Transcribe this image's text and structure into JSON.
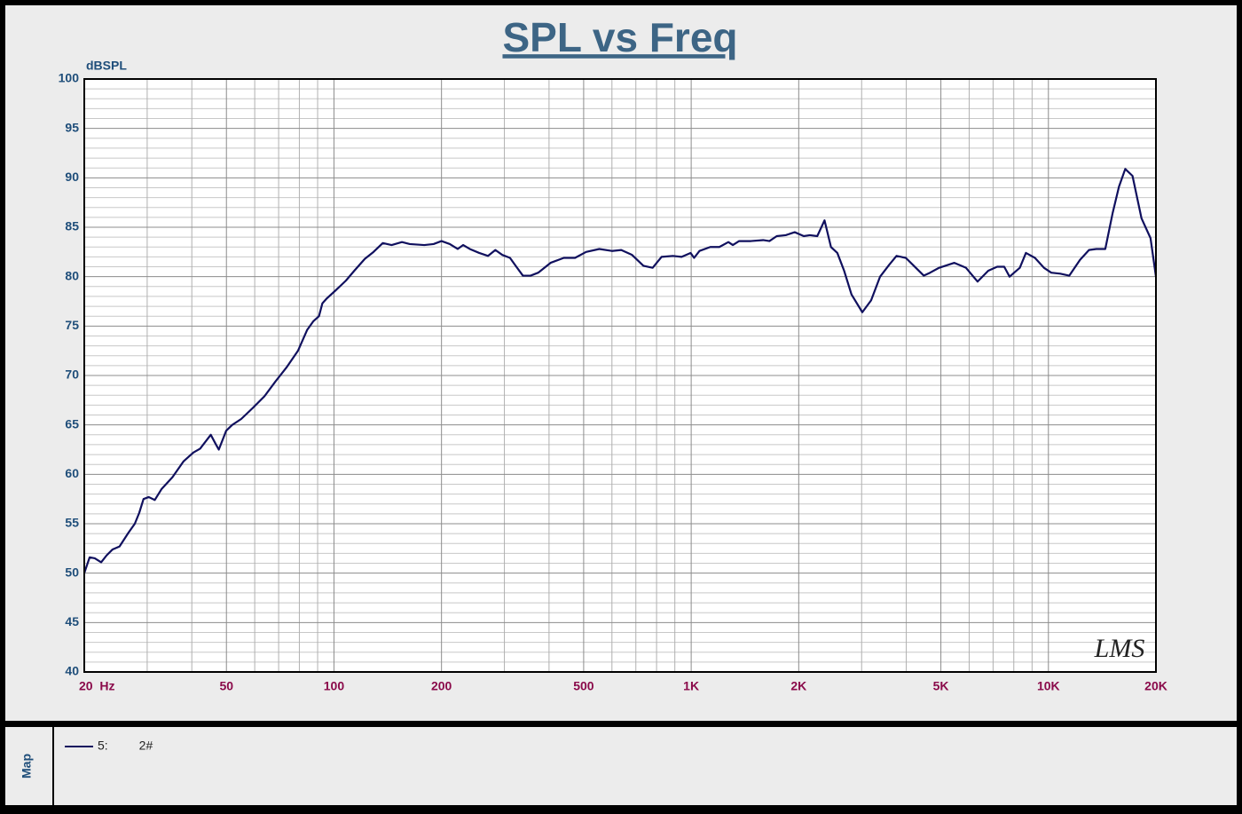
{
  "chart_data": {
    "type": "line",
    "title": "SPL vs Freq",
    "y_label": "dBSPL",
    "annotation": "LMS",
    "panel_label": "Map",
    "log_x": true,
    "grid": true,
    "xlim": [
      20,
      20000
    ],
    "ylim": [
      40,
      100
    ],
    "xticks": [
      {
        "value": 20,
        "label": "20  Hz"
      },
      50,
      100,
      200,
      500,
      {
        "value": 1000,
        "label": "1K"
      },
      {
        "value": 2000,
        "label": "2K"
      },
      {
        "value": 5000,
        "label": "5K"
      },
      {
        "value": 10000,
        "label": "10K"
      },
      {
        "value": 20000,
        "label": "20K"
      }
    ],
    "xminor": [
      30,
      40,
      60,
      70,
      80,
      90,
      300,
      400,
      600,
      700,
      800,
      900,
      3000,
      4000,
      6000,
      7000,
      8000,
      9000
    ],
    "yticks": [
      40,
      45,
      50,
      55,
      60,
      65,
      70,
      75,
      80,
      85,
      90,
      95,
      100
    ],
    "yminor": [
      41,
      42,
      43,
      44,
      46,
      47,
      48,
      49,
      51,
      52,
      53,
      54,
      56,
      57,
      58,
      59,
      61,
      62,
      63,
      64,
      66,
      67,
      68,
      69,
      71,
      72,
      73,
      74,
      76,
      77,
      78,
      79,
      81,
      82,
      83,
      84,
      86,
      87,
      88,
      89,
      91,
      92,
      93,
      94,
      96,
      97,
      98,
      99
    ],
    "x": [
      20,
      20.7,
      21.4,
      22.3,
      23.1,
      24,
      25.1,
      26.6,
      27.7,
      28.5,
      29.3,
      30.3,
      31.5,
      32.9,
      35.3,
      37.9,
      40.4,
      42.2,
      43.9,
      45.2,
      46.6,
      47.6,
      49.9,
      51.9,
      55,
      59.2,
      63.9,
      68.6,
      73.6,
      79.3,
      84.1,
      87.6,
      90.8,
      92.8,
      95.5,
      101,
      108,
      114,
      122,
      129,
      137,
      145,
      155,
      163,
      179,
      190,
      200,
      211,
      222,
      230,
      240,
      255,
      270,
      283,
      296,
      311,
      324,
      338,
      355,
      373,
      404,
      440,
      473,
      508,
      553,
      600,
      637,
      683,
      735,
      780,
      826,
      889,
      940,
      996,
      1019,
      1055,
      1131,
      1199,
      1271,
      1308,
      1362,
      1469,
      1590,
      1656,
      1736,
      1839,
      1949,
      2066,
      2149,
      2254,
      2362,
      2462,
      2565,
      2680,
      2810,
      3013,
      3189,
      3379,
      3583,
      3756,
      3988,
      4227,
      4479,
      4663,
      4944,
      5453,
      5878,
      6333,
      6786,
      7187,
      7521,
      7786,
      8316,
      8651,
      9168,
      9716,
      10186,
      10795,
      11441,
      12258,
      12991,
      13614,
      14428,
      15121,
      15757,
      16410,
      17195,
      18223,
      19312,
      20000
    ],
    "series": [
      {
        "name": "5:         2#",
        "color": "#10105e",
        "values": [
          50.0,
          51.6,
          51.5,
          51.1,
          51.8,
          52.4,
          52.7,
          54.1,
          55.0,
          56.1,
          57.5,
          57.7,
          57.4,
          58.5,
          59.7,
          61.3,
          62.2,
          62.6,
          63.4,
          64.0,
          63.1,
          62.5,
          64.4,
          65.0,
          65.6,
          66.7,
          67.9,
          69.4,
          70.8,
          72.5,
          74.6,
          75.5,
          76.0,
          77.3,
          77.8,
          78.6,
          79.6,
          80.6,
          81.8,
          82.5,
          83.4,
          83.2,
          83.5,
          83.3,
          83.2,
          83.3,
          83.6,
          83.3,
          82.8,
          83.2,
          82.8,
          82.4,
          82.1,
          82.7,
          82.2,
          81.9,
          81.0,
          80.1,
          80.1,
          80.4,
          81.4,
          81.9,
          81.9,
          82.5,
          82.8,
          82.6,
          82.7,
          82.2,
          81.1,
          80.9,
          82.0,
          82.1,
          82.0,
          82.4,
          81.9,
          82.6,
          83.0,
          83.0,
          83.5,
          83.2,
          83.6,
          83.6,
          83.7,
          83.6,
          84.1,
          84.2,
          84.5,
          84.1,
          84.2,
          84.1,
          85.7,
          83.0,
          82.4,
          80.6,
          78.2,
          76.4,
          77.6,
          80.0,
          81.2,
          82.1,
          81.9,
          81.0,
          80.1,
          80.4,
          80.9,
          81.4,
          80.9,
          79.5,
          80.6,
          81.0,
          81.0,
          80.0,
          80.9,
          82.4,
          81.9,
          80.9,
          80.4,
          80.3,
          80.1,
          81.7,
          82.7,
          82.8,
          82.8,
          86.4,
          89.1,
          90.9,
          90.2,
          85.9,
          83.9,
          80.0
        ]
      }
    ]
  }
}
